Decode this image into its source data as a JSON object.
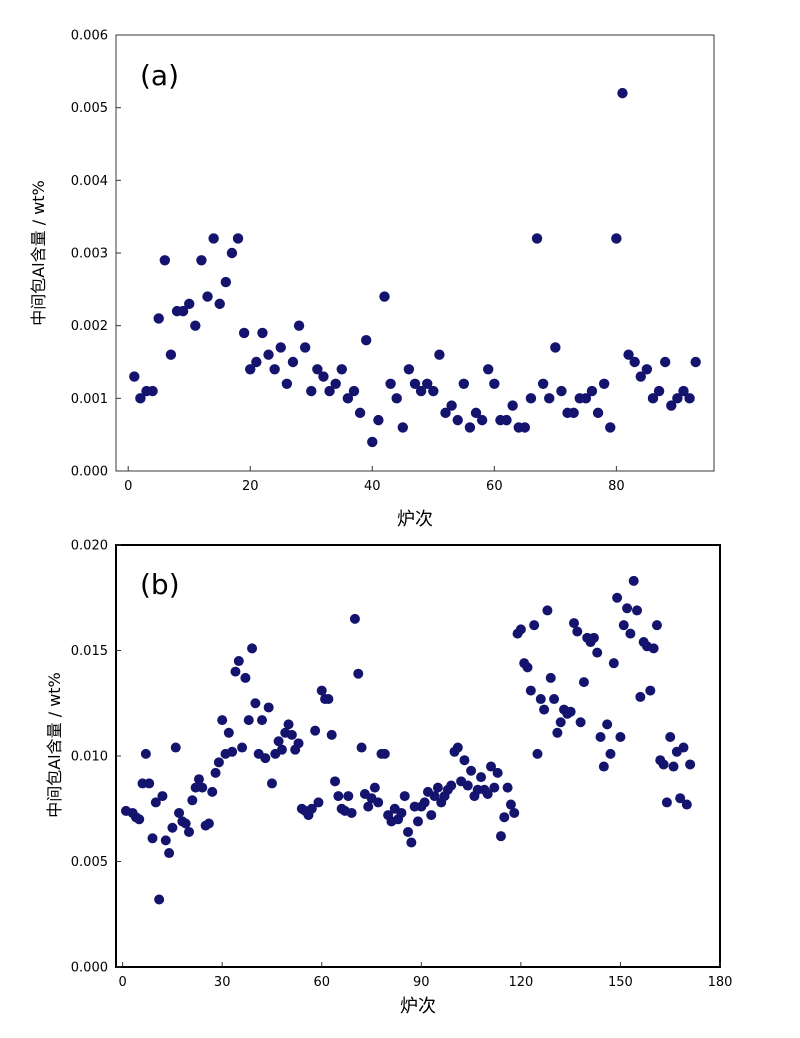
{
  "chart_data": [
    {
      "type": "scatter",
      "panel_label": "(a)",
      "xlabel": "炉次",
      "ylabel": "中间包Al含量 / wt%",
      "xlim": [
        -2,
        96
      ],
      "ylim": [
        0,
        0.006
      ],
      "x_ticks": [
        0,
        20,
        40,
        60,
        80
      ],
      "y_ticks": [
        0.0,
        0.001,
        0.002,
        0.003,
        0.004,
        0.005,
        0.006
      ],
      "x_tick_labels": [
        "0",
        "20",
        "40",
        "60",
        "80"
      ],
      "y_tick_labels": [
        "0.000",
        "0.001",
        "0.002",
        "0.003",
        "0.004",
        "0.005",
        "0.006"
      ],
      "marker_color": "#14146e",
      "points": [
        [
          1,
          0.0013
        ],
        [
          2,
          0.001
        ],
        [
          3,
          0.0011
        ],
        [
          4,
          0.0011
        ],
        [
          5,
          0.0021
        ],
        [
          6,
          0.0029
        ],
        [
          7,
          0.0016
        ],
        [
          8,
          0.0022
        ],
        [
          9,
          0.0022
        ],
        [
          10,
          0.0023
        ],
        [
          11,
          0.002
        ],
        [
          12,
          0.0029
        ],
        [
          13,
          0.0024
        ],
        [
          14,
          0.0032
        ],
        [
          15,
          0.0023
        ],
        [
          16,
          0.0026
        ],
        [
          17,
          0.003
        ],
        [
          18,
          0.0032
        ],
        [
          19,
          0.0019
        ],
        [
          20,
          0.0014
        ],
        [
          21,
          0.0015
        ],
        [
          22,
          0.0019
        ],
        [
          23,
          0.0016
        ],
        [
          24,
          0.0014
        ],
        [
          25,
          0.0017
        ],
        [
          26,
          0.0012
        ],
        [
          27,
          0.0015
        ],
        [
          28,
          0.002
        ],
        [
          29,
          0.0017
        ],
        [
          30,
          0.0011
        ],
        [
          31,
          0.0014
        ],
        [
          32,
          0.0013
        ],
        [
          33,
          0.0011
        ],
        [
          34,
          0.0012
        ],
        [
          35,
          0.0014
        ],
        [
          36,
          0.001
        ],
        [
          37,
          0.0011
        ],
        [
          38,
          0.0008
        ],
        [
          39,
          0.0018
        ],
        [
          40,
          0.0004
        ],
        [
          41,
          0.0007
        ],
        [
          42,
          0.0024
        ],
        [
          43,
          0.0012
        ],
        [
          44,
          0.001
        ],
        [
          45,
          0.0006
        ],
        [
          46,
          0.0014
        ],
        [
          47,
          0.0012
        ],
        [
          48,
          0.0011
        ],
        [
          49,
          0.0012
        ],
        [
          50,
          0.0011
        ],
        [
          51,
          0.0016
        ],
        [
          52,
          0.0008
        ],
        [
          53,
          0.0009
        ],
        [
          54,
          0.0007
        ],
        [
          55,
          0.0012
        ],
        [
          56,
          0.0006
        ],
        [
          57,
          0.0008
        ],
        [
          58,
          0.0007
        ],
        [
          59,
          0.0014
        ],
        [
          60,
          0.0012
        ],
        [
          61,
          0.0007
        ],
        [
          62,
          0.0007
        ],
        [
          63,
          0.0009
        ],
        [
          64,
          0.0006
        ],
        [
          65,
          0.0006
        ],
        [
          66,
          0.001
        ],
        [
          67,
          0.0032
        ],
        [
          68,
          0.0012
        ],
        [
          69,
          0.001
        ],
        [
          70,
          0.0017
        ],
        [
          71,
          0.0011
        ],
        [
          72,
          0.0008
        ],
        [
          73,
          0.0008
        ],
        [
          74,
          0.001
        ],
        [
          75,
          0.001
        ],
        [
          76,
          0.0011
        ],
        [
          77,
          0.0008
        ],
        [
          78,
          0.0012
        ],
        [
          79,
          0.0006
        ],
        [
          80,
          0.0032
        ],
        [
          81,
          0.0052
        ],
        [
          82,
          0.0016
        ],
        [
          83,
          0.0015
        ],
        [
          84,
          0.0013
        ],
        [
          85,
          0.0014
        ],
        [
          86,
          0.001
        ],
        [
          87,
          0.0011
        ],
        [
          88,
          0.0015
        ],
        [
          89,
          0.0009
        ],
        [
          90,
          0.001
        ],
        [
          91,
          0.0011
        ],
        [
          92,
          0.001
        ],
        [
          93,
          0.0015
        ]
      ]
    },
    {
      "type": "scatter",
      "panel_label": "(b)",
      "xlabel": "炉次",
      "ylabel": "中间包Al含量 / wt%",
      "xlim": [
        -2,
        180
      ],
      "ylim": [
        0,
        0.02
      ],
      "x_ticks": [
        0,
        30,
        60,
        90,
        120,
        150,
        180
      ],
      "y_ticks": [
        0.0,
        0.005,
        0.01,
        0.015,
        0.02
      ],
      "x_tick_labels": [
        "0",
        "30",
        "60",
        "90",
        "120",
        "150",
        "180"
      ],
      "y_tick_labels": [
        "0.000",
        "0.005",
        "0.010",
        "0.015",
        "0.020"
      ],
      "marker_color": "#14146e",
      "points": [
        [
          1,
          0.0074
        ],
        [
          3,
          0.0073
        ],
        [
          4,
          0.0071
        ],
        [
          5,
          0.007
        ],
        [
          6,
          0.0087
        ],
        [
          7,
          0.0101
        ],
        [
          8,
          0.0087
        ],
        [
          9,
          0.0061
        ],
        [
          10,
          0.0078
        ],
        [
          11,
          0.0032
        ],
        [
          12,
          0.0081
        ],
        [
          13,
          0.006
        ],
        [
          14,
          0.0054
        ],
        [
          15,
          0.0066
        ],
        [
          16,
          0.0104
        ],
        [
          17,
          0.0073
        ],
        [
          18,
          0.0069
        ],
        [
          19,
          0.0068
        ],
        [
          20,
          0.0064
        ],
        [
          21,
          0.0079
        ],
        [
          22,
          0.0085
        ],
        [
          23,
          0.0089
        ],
        [
          24,
          0.0085
        ],
        [
          25,
          0.0067
        ],
        [
          26,
          0.0068
        ],
        [
          27,
          0.0083
        ],
        [
          28,
          0.0092
        ],
        [
          29,
          0.0097
        ],
        [
          30,
          0.0117
        ],
        [
          31,
          0.0101
        ],
        [
          32,
          0.0111
        ],
        [
          33,
          0.0102
        ],
        [
          34,
          0.014
        ],
        [
          35,
          0.0145
        ],
        [
          36,
          0.0104
        ],
        [
          37,
          0.0137
        ],
        [
          38,
          0.0117
        ],
        [
          39,
          0.0151
        ],
        [
          40,
          0.0125
        ],
        [
          41,
          0.0101
        ],
        [
          42,
          0.0117
        ],
        [
          43,
          0.0099
        ],
        [
          44,
          0.0123
        ],
        [
          45,
          0.0087
        ],
        [
          46,
          0.0101
        ],
        [
          47,
          0.0107
        ],
        [
          48,
          0.0103
        ],
        [
          49,
          0.0111
        ],
        [
          50,
          0.0115
        ],
        [
          51,
          0.011
        ],
        [
          52,
          0.0103
        ],
        [
          53,
          0.0106
        ],
        [
          54,
          0.0075
        ],
        [
          55,
          0.0074
        ],
        [
          56,
          0.0072
        ],
        [
          57,
          0.0075
        ],
        [
          58,
          0.0112
        ],
        [
          59,
          0.0078
        ],
        [
          60,
          0.0131
        ],
        [
          61,
          0.0127
        ],
        [
          62,
          0.0127
        ],
        [
          63,
          0.011
        ],
        [
          64,
          0.0088
        ],
        [
          65,
          0.0081
        ],
        [
          66,
          0.0075
        ],
        [
          67,
          0.0074
        ],
        [
          68,
          0.0081
        ],
        [
          69,
          0.0073
        ],
        [
          70,
          0.0165
        ],
        [
          71,
          0.0139
        ],
        [
          72,
          0.0104
        ],
        [
          73,
          0.0082
        ],
        [
          74,
          0.0076
        ],
        [
          75,
          0.008
        ],
        [
          76,
          0.0085
        ],
        [
          77,
          0.0078
        ],
        [
          78,
          0.0101
        ],
        [
          79,
          0.0101
        ],
        [
          80,
          0.0072
        ],
        [
          81,
          0.0069
        ],
        [
          82,
          0.0075
        ],
        [
          83,
          0.007
        ],
        [
          84,
          0.0073
        ],
        [
          85,
          0.0081
        ],
        [
          86,
          0.0064
        ],
        [
          87,
          0.0059
        ],
        [
          88,
          0.0076
        ],
        [
          89,
          0.0069
        ],
        [
          90,
          0.0076
        ],
        [
          91,
          0.0078
        ],
        [
          92,
          0.0083
        ],
        [
          93,
          0.0072
        ],
        [
          94,
          0.0081
        ],
        [
          95,
          0.0085
        ],
        [
          96,
          0.0078
        ],
        [
          97,
          0.0081
        ],
        [
          98,
          0.0084
        ],
        [
          99,
          0.0086
        ],
        [
          100,
          0.0102
        ],
        [
          101,
          0.0104
        ],
        [
          102,
          0.0088
        ],
        [
          103,
          0.0098
        ],
        [
          104,
          0.0086
        ],
        [
          105,
          0.0093
        ],
        [
          106,
          0.0081
        ],
        [
          107,
          0.0084
        ],
        [
          108,
          0.009
        ],
        [
          109,
          0.0084
        ],
        [
          110,
          0.0082
        ],
        [
          111,
          0.0095
        ],
        [
          112,
          0.0085
        ],
        [
          113,
          0.0092
        ],
        [
          114,
          0.0062
        ],
        [
          115,
          0.0071
        ],
        [
          116,
          0.0085
        ],
        [
          117,
          0.0077
        ],
        [
          118,
          0.0073
        ],
        [
          119,
          0.0158
        ],
        [
          120,
          0.016
        ],
        [
          121,
          0.0144
        ],
        [
          122,
          0.0142
        ],
        [
          123,
          0.0131
        ],
        [
          124,
          0.0162
        ],
        [
          125,
          0.0101
        ],
        [
          126,
          0.0127
        ],
        [
          127,
          0.0122
        ],
        [
          128,
          0.0169
        ],
        [
          129,
          0.0137
        ],
        [
          130,
          0.0127
        ],
        [
          131,
          0.0111
        ],
        [
          132,
          0.0116
        ],
        [
          133,
          0.0122
        ],
        [
          134,
          0.012
        ],
        [
          135,
          0.0121
        ],
        [
          136,
          0.0163
        ],
        [
          137,
          0.0159
        ],
        [
          138,
          0.0116
        ],
        [
          139,
          0.0135
        ],
        [
          140,
          0.0156
        ],
        [
          141,
          0.0154
        ],
        [
          142,
          0.0156
        ],
        [
          143,
          0.0149
        ],
        [
          144,
          0.0109
        ],
        [
          145,
          0.0095
        ],
        [
          146,
          0.0115
        ],
        [
          147,
          0.0101
        ],
        [
          148,
          0.0144
        ],
        [
          149,
          0.0175
        ],
        [
          150,
          0.0109
        ],
        [
          151,
          0.0162
        ],
        [
          152,
          0.017
        ],
        [
          153,
          0.0158
        ],
        [
          154,
          0.0183
        ],
        [
          155,
          0.0169
        ],
        [
          156,
          0.0128
        ],
        [
          157,
          0.0154
        ],
        [
          158,
          0.0152
        ],
        [
          159,
          0.0131
        ],
        [
          160,
          0.0151
        ],
        [
          161,
          0.0162
        ],
        [
          162,
          0.0098
        ],
        [
          163,
          0.0096
        ],
        [
          164,
          0.0078
        ],
        [
          165,
          0.0109
        ],
        [
          166,
          0.0095
        ],
        [
          167,
          0.0102
        ],
        [
          168,
          0.008
        ],
        [
          169,
          0.0104
        ],
        [
          170,
          0.0077
        ],
        [
          171,
          0.0096
        ]
      ]
    }
  ]
}
